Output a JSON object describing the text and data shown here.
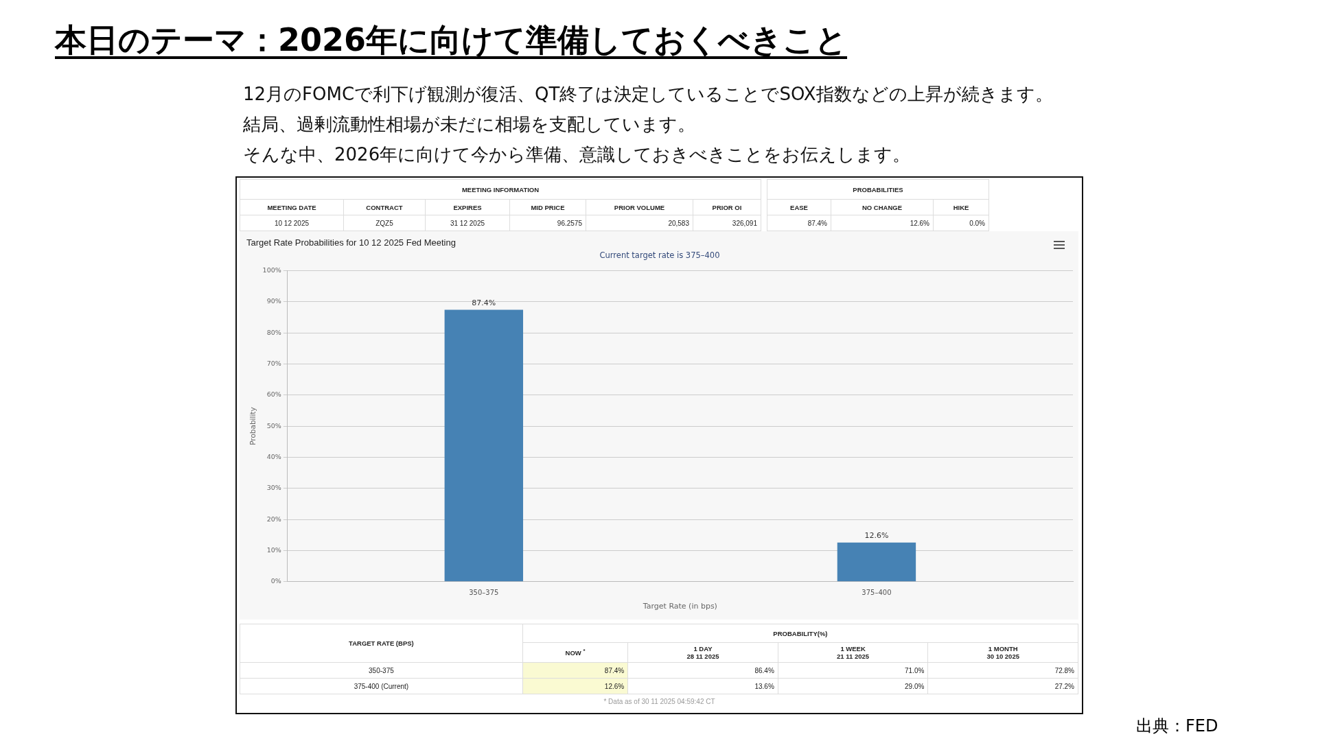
{
  "chart_data": {
    "type": "bar",
    "title": "Target Rate Probabilities for 10 12 2025 Fed Meeting",
    "subtitle": "Current target rate is 375–400",
    "xlabel": "Target Rate (in bps)",
    "ylabel": "Probability",
    "categories": [
      "350–375",
      "375–400"
    ],
    "values": [
      87.4,
      12.6
    ],
    "color": "#4682b4",
    "value_labels": [
      "87.4%",
      "12.6%"
    ],
    "ylim": [
      0,
      100
    ],
    "yticks": [
      {
        "value": 0,
        "label": "0%"
      },
      {
        "value": 10,
        "label": "10%"
      },
      {
        "value": 20,
        "label": "20%"
      },
      {
        "value": 30,
        "label": "30%"
      },
      {
        "value": 40,
        "label": "40%"
      },
      {
        "value": 50,
        "label": "50%"
      },
      {
        "value": 60,
        "label": "60%"
      },
      {
        "value": 70,
        "label": "70%"
      },
      {
        "value": 80,
        "label": "80%"
      },
      {
        "value": 90,
        "label": "90%"
      },
      {
        "value": 100,
        "label": "100%"
      }
    ],
    "grid": "y",
    "legend": false,
    "annotations": [
      "本日のテーマ：2026年に向けて準備しておくべきこと",
      "12月のFOMCで利下げ観測が復活、QT終了は決定していることでSOX指数などの上昇が続きます。",
      "結局、過剰流動性相場が未だに相場を支配しています。",
      "そんな中、2026年に向けて今から準備、意識しておきべきことをお伝えします。",
      "MEETING INFORMATION",
      "PROBABILITIES",
      "MEETING DATE",
      "CONTRACT",
      "EXPIRES",
      "MID PRICE",
      "PRIOR VOLUME",
      "PRIOR OI",
      "EASE",
      "NO CHANGE",
      "HIKE",
      "10 12 2025",
      "ZQZ5",
      "31 12 2025",
      "96.2575",
      "20,583",
      "326,091",
      "87.4%",
      "12.6%",
      "0.0%",
      "TARGET RATE (BPS)",
      "PROBABILITY(%)",
      "NOW $^{*}$",
      "1 DAY\n28 11 2025",
      "1 WEEK\n21 11 2025",
      "1 MONTH\n30 10 2025",
      "350-375",
      "87.4%",
      "86.4%",
      "71.0%",
      "72.8%",
      "375-400 (Current)",
      "12.6%",
      "13.6%",
      "29.0%",
      "27.2%",
      "* Data as of 30 11 2025 04:59:42 CT",
      "出典：FED"
    ]
  }
}
